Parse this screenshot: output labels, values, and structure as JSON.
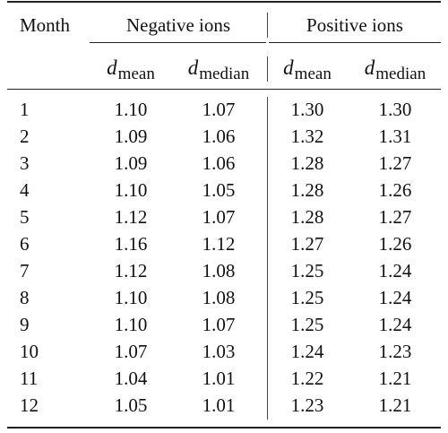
{
  "header": {
    "month": "Month",
    "group_negative": "Negative ions",
    "group_positive": "Positive ions",
    "subcols": [
      {
        "symbol": "d",
        "subscript": "mean"
      },
      {
        "symbol": "d",
        "subscript": "median"
      },
      {
        "symbol": "d",
        "subscript": "mean"
      },
      {
        "symbol": "d",
        "subscript": "median"
      }
    ]
  },
  "rows": [
    {
      "month": "1",
      "neg_mean": "1.10",
      "neg_median": "1.07",
      "pos_mean": "1.30",
      "pos_median": "1.30"
    },
    {
      "month": "2",
      "neg_mean": "1.09",
      "neg_median": "1.06",
      "pos_mean": "1.32",
      "pos_median": "1.31"
    },
    {
      "month": "3",
      "neg_mean": "1.09",
      "neg_median": "1.06",
      "pos_mean": "1.28",
      "pos_median": "1.27"
    },
    {
      "month": "4",
      "neg_mean": "1.10",
      "neg_median": "1.05",
      "pos_mean": "1.28",
      "pos_median": "1.26"
    },
    {
      "month": "5",
      "neg_mean": "1.12",
      "neg_median": "1.07",
      "pos_mean": "1.28",
      "pos_median": "1.27"
    },
    {
      "month": "6",
      "neg_mean": "1.16",
      "neg_median": "1.12",
      "pos_mean": "1.27",
      "pos_median": "1.26"
    },
    {
      "month": "7",
      "neg_mean": "1.12",
      "neg_median": "1.08",
      "pos_mean": "1.25",
      "pos_median": "1.24"
    },
    {
      "month": "8",
      "neg_mean": "1.10",
      "neg_median": "1.08",
      "pos_mean": "1.25",
      "pos_median": "1.24"
    },
    {
      "month": "9",
      "neg_mean": "1.10",
      "neg_median": "1.07",
      "pos_mean": "1.25",
      "pos_median": "1.24"
    },
    {
      "month": "10",
      "neg_mean": "1.07",
      "neg_median": "1.03",
      "pos_mean": "1.24",
      "pos_median": "1.23"
    },
    {
      "month": "11",
      "neg_mean": "1.04",
      "neg_median": "1.01",
      "pos_mean": "1.22",
      "pos_median": "1.21"
    },
    {
      "month": "12",
      "neg_mean": "1.05",
      "neg_median": "1.01",
      "pos_mean": "1.23",
      "pos_median": "1.21"
    }
  ]
}
